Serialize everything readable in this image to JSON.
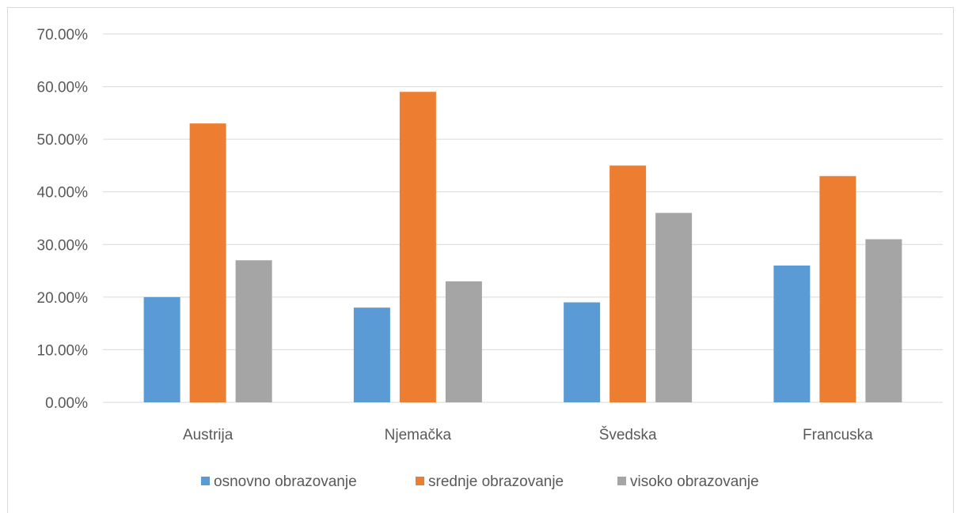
{
  "chart_data": {
    "type": "bar",
    "categories": [
      "Austrija",
      "Njemačka",
      "Švedska",
      "Francuska"
    ],
    "series": [
      {
        "name": "osnovno obrazovanje",
        "values": [
          20,
          18,
          19,
          26
        ],
        "color": "#5b9bd5"
      },
      {
        "name": "srednje obrazovanje",
        "values": [
          53,
          59,
          45,
          43
        ],
        "color": "#ed7d31"
      },
      {
        "name": "visoko obrazovanje",
        "values": [
          27,
          23,
          36,
          31
        ],
        "color": "#a5a5a5"
      }
    ],
    "ylim": [
      0,
      70
    ],
    "yticks": [
      "0.00%",
      "10.00%",
      "20.00%",
      "30.00%",
      "40.00%",
      "50.00%",
      "60.00%",
      "70.00%"
    ],
    "ytick_values": [
      0,
      10,
      20,
      30,
      40,
      50,
      60,
      70
    ],
    "grid": true,
    "legend_position": "bottom",
    "title": "",
    "xlabel": "",
    "ylabel": ""
  }
}
